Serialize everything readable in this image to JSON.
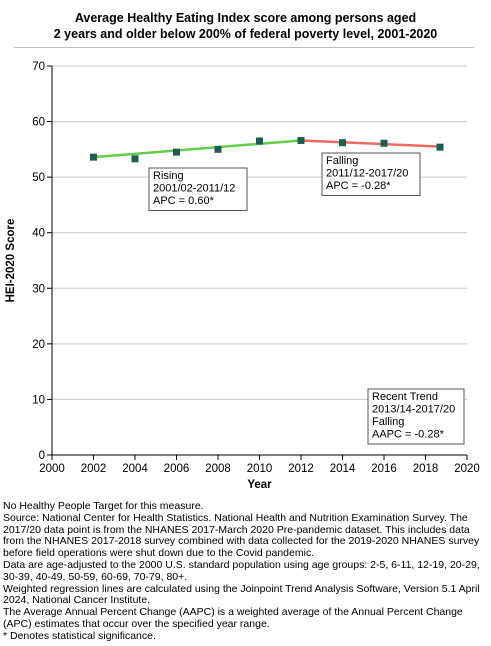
{
  "title_line1": "Average Healthy Eating Index score among  persons aged",
  "title_line2": "2 years and older below 200% of federal poverty level, 2001-2020",
  "chart_data": {
    "type": "line",
    "xlabel": "Year",
    "ylabel": "HEI-2020 Score",
    "xlim": [
      2000,
      2020
    ],
    "ylim": [
      0,
      70
    ],
    "xticks": [
      "2000",
      "2002",
      "2004",
      "2006",
      "2008",
      "2010",
      "2012",
      "2014",
      "2016",
      "2018",
      "2020"
    ],
    "yticks": [
      "0",
      "10",
      "20",
      "30",
      "40",
      "50",
      "60",
      "70"
    ],
    "grid": "horizontal",
    "points": {
      "x": [
        2002,
        2004,
        2006,
        2008,
        2010,
        2012,
        2014,
        2016,
        2018.7
      ],
      "y": [
        53.6,
        53.3,
        54.5,
        55.0,
        56.5,
        56.6,
        56.2,
        56.1,
        55.4
      ]
    },
    "trends": [
      {
        "segment": "rising",
        "x": [
          2002,
          2012
        ],
        "y": [
          53.6,
          56.6
        ],
        "color": "#66cc4c"
      },
      {
        "segment": "falling",
        "x": [
          2012,
          2018.7
        ],
        "y": [
          56.6,
          55.5
        ],
        "color": "#f06a64"
      }
    ],
    "marker_color": "#1f5d52",
    "annotations": {
      "rising": [
        "Rising",
        "2001/02-2011/12",
        "APC =  0.60*"
      ],
      "falling": [
        "Falling",
        "2011/12-2017/20",
        "APC = -0.28*"
      ],
      "recent": [
        "Recent Trend",
        "2013/14-2017/20",
        "Falling",
        "AAPC = -0.28*"
      ]
    }
  },
  "footnotes": [
    "No Healthy People Target for this measure.",
    "Source: National Center for Health Statistics. National Health and Nutrition Examination Survey. The 2017/20 data point is from the NHANES 2017-March 2020 Pre-pandemic dataset. This includes data from the NHANES 2017-2018 survey combined with data collected for the 2019-2020 NHANES survey before field operations were shut down due to the Covid pandemic.",
    "Data are age-adjusted to the 2000 U.S. standard population using age groups: 2-5, 6-11, 12-19, 20-29, 30-39, 40-49, 50-59, 60-69, 70-79, 80+.",
    "Weighted regression lines are calculated using the Joinpoint Trend Analysis Software, Version 5.1 April 2024, National Cancer Institute.",
    "The Average Annual Percent Change (AAPC) is a weighted average of the Annual Percent Change (APC) estimates that occur over the specified year range.",
    "* Denotes statistical significance."
  ]
}
